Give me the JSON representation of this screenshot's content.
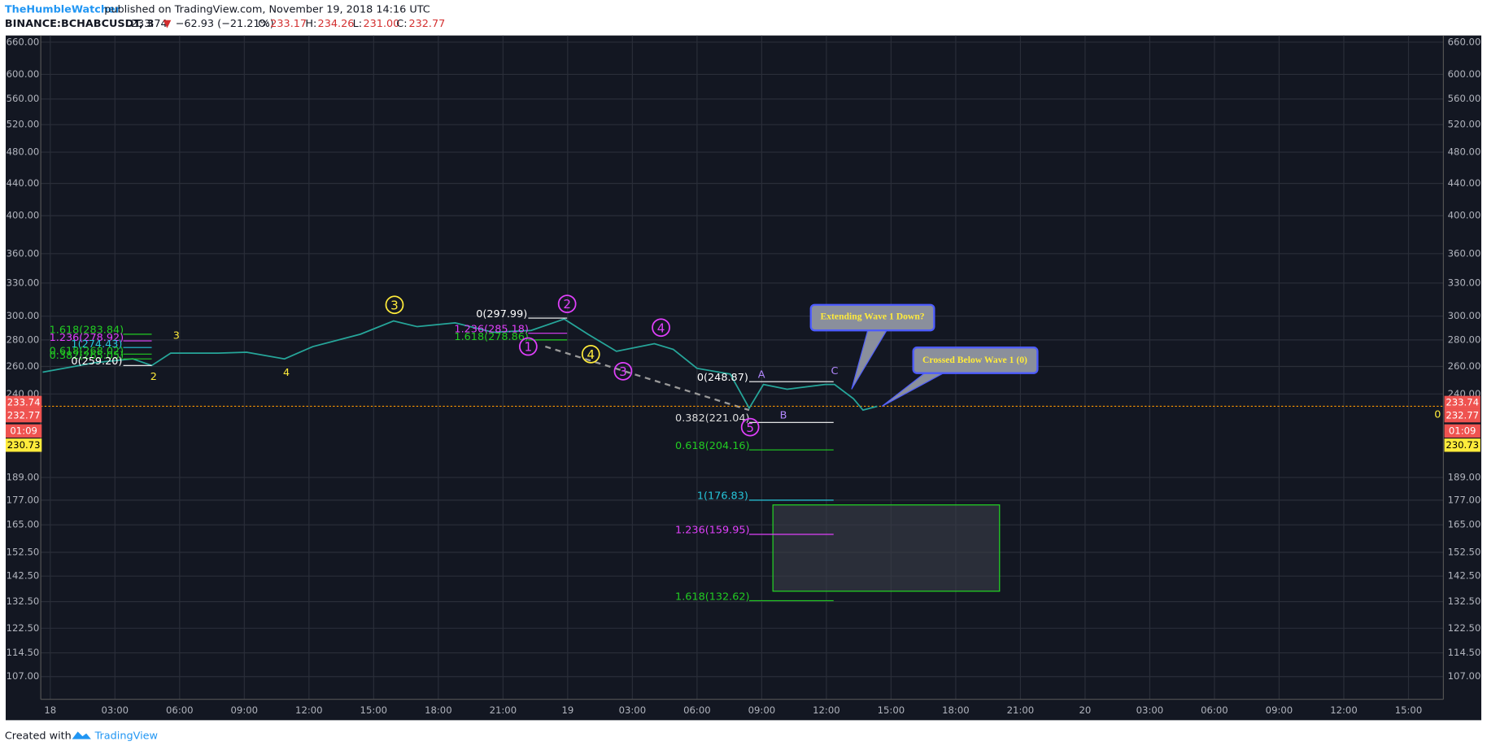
{
  "header": {
    "author": "TheHumbleWatcher",
    "published": "published on TradingView.com, November 19, 2018 14:16 UTC",
    "symbol": "BINANCE:BCHABCUSDT, 3",
    "last": "233.74",
    "arrow": "▼",
    "change": "−62.93 (−21.21%)",
    "o_label": "O:",
    "o": "233.17",
    "h_label": "H:",
    "h": "234.26",
    "l_label": "L:",
    "l": "231.00",
    "c_label": "C:",
    "c": "232.77"
  },
  "price_axis": [
    "660.00",
    "600.00",
    "560.00",
    "520.00",
    "480.00",
    "440.00",
    "400.00",
    "360.00",
    "330.00",
    "300.00",
    "280.00",
    "260.00",
    "240.00",
    "189.00",
    "177.00",
    "165.00",
    "152.50",
    "142.50",
    "132.50",
    "122.50",
    "114.50",
    "107.00"
  ],
  "badges": [
    "233.74",
    "232.77",
    "01:09",
    "230.73"
  ],
  "time_axis": [
    "18",
    "03:00",
    "06:00",
    "09:00",
    "12:00",
    "15:00",
    "18:00",
    "21:00",
    "19",
    "03:00",
    "06:00",
    "09:00",
    "12:00",
    "15:00",
    "18:00",
    "21:00",
    "20",
    "03:00",
    "06:00",
    "09:00",
    "12:00",
    "15:00"
  ],
  "fib_left": [
    "1.618(283.84)",
    "1.236(278.92)",
    "1(274.43)",
    "0.618(268.02)",
    "0.382(265.05)",
    "0(259.20)"
  ],
  "fib_mid": [
    "0(297.99)",
    "1.236(285.18)",
    "1.618(278.86)"
  ],
  "fib_right": [
    "0(248.87)",
    "0.382(221.04)",
    "0.618(204.16)",
    "1(176.83)",
    "1.236(159.95)",
    "1.618(132.62)"
  ],
  "waves": [
    "3",
    "2",
    "4",
    "1",
    "4",
    "3",
    "5"
  ],
  "minor_waves": [
    "3",
    "2",
    "4",
    "A",
    "B",
    "C",
    "0"
  ],
  "callouts": [
    "Extending Wave 1 Down?",
    "Crossed Below Wave 1 (0)"
  ],
  "footer": {
    "created": "Created with",
    "brand": "TradingView"
  }
}
